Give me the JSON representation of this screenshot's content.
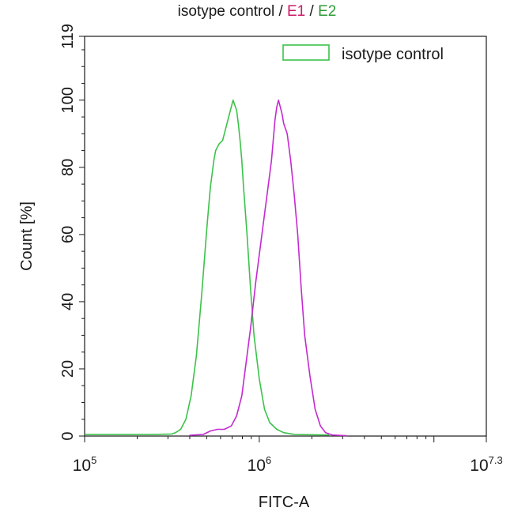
{
  "chart_data": {
    "type": "line",
    "title": {
      "parts": [
        {
          "text": "isotype control / ",
          "color": "#1a1a1a"
        },
        {
          "text": "E1",
          "color": "#cc1a66"
        },
        {
          "text": " / ",
          "color": "#1a1a1a"
        },
        {
          "text": "E2",
          "color": "#2e9a3a"
        }
      ]
    },
    "xlabel": "FITC-A",
    "ylabel": "Count  [%]",
    "x_scale": "log10",
    "xlim_exponent": [
      5,
      7.3
    ],
    "ylim": [
      0,
      119
    ],
    "y_ticks": [
      0,
      20,
      40,
      60,
      80,
      100,
      119
    ],
    "x_ticks": [
      {
        "exp": 5,
        "base": "10",
        "sup": "5"
      },
      {
        "exp": 6,
        "base": "10",
        "sup": "6"
      },
      {
        "exp": 7.3,
        "base": "10",
        "sup": "7.3"
      }
    ],
    "legend": {
      "position": "top-right",
      "entries": [
        {
          "label": "isotype control",
          "color": "#3cc24a"
        }
      ]
    },
    "series": [
      {
        "color": "#3cc24a",
        "points": [
          [
            5.0,
            0.5
          ],
          [
            5.2,
            0.5
          ],
          [
            5.4,
            0.5
          ],
          [
            5.5,
            0.6
          ],
          [
            5.52,
            1.0
          ],
          [
            5.55,
            2
          ],
          [
            5.58,
            5
          ],
          [
            5.61,
            12
          ],
          [
            5.64,
            24
          ],
          [
            5.67,
            42
          ],
          [
            5.7,
            62
          ],
          [
            5.72,
            74
          ],
          [
            5.74,
            82
          ],
          [
            5.75,
            85
          ],
          [
            5.77,
            87
          ],
          [
            5.79,
            88
          ],
          [
            5.8,
            90
          ],
          [
            5.82,
            94
          ],
          [
            5.84,
            98
          ],
          [
            5.85,
            100
          ],
          [
            5.87,
            97
          ],
          [
            5.88,
            93
          ],
          [
            5.89,
            88
          ],
          [
            5.9,
            82
          ],
          [
            5.91,
            74
          ],
          [
            5.93,
            60
          ],
          [
            5.95,
            44
          ],
          [
            5.97,
            30
          ],
          [
            6.0,
            17
          ],
          [
            6.03,
            8
          ],
          [
            6.06,
            4
          ],
          [
            6.1,
            2
          ],
          [
            6.14,
            1
          ],
          [
            6.2,
            0.5
          ],
          [
            6.4,
            0.3
          ]
        ]
      },
      {
        "color": "#c42ad0",
        "points": [
          [
            5.6,
            0.2
          ],
          [
            5.68,
            0.5
          ],
          [
            5.72,
            1.5
          ],
          [
            5.76,
            2
          ],
          [
            5.8,
            2
          ],
          [
            5.84,
            3
          ],
          [
            5.87,
            6
          ],
          [
            5.9,
            12
          ],
          [
            5.92,
            20
          ],
          [
            5.95,
            32
          ],
          [
            5.98,
            46
          ],
          [
            6.01,
            58
          ],
          [
            6.04,
            70
          ],
          [
            6.07,
            82
          ],
          [
            6.09,
            94
          ],
          [
            6.1,
            98
          ],
          [
            6.11,
            100
          ],
          [
            6.13,
            96
          ],
          [
            6.14,
            93
          ],
          [
            6.16,
            90
          ],
          [
            6.18,
            82
          ],
          [
            6.2,
            72
          ],
          [
            6.22,
            60
          ],
          [
            6.24,
            44
          ],
          [
            6.26,
            30
          ],
          [
            6.29,
            18
          ],
          [
            6.32,
            8
          ],
          [
            6.35,
            3
          ],
          [
            6.38,
            1
          ],
          [
            6.42,
            0.3
          ],
          [
            6.5,
            0.1
          ]
        ]
      }
    ]
  }
}
